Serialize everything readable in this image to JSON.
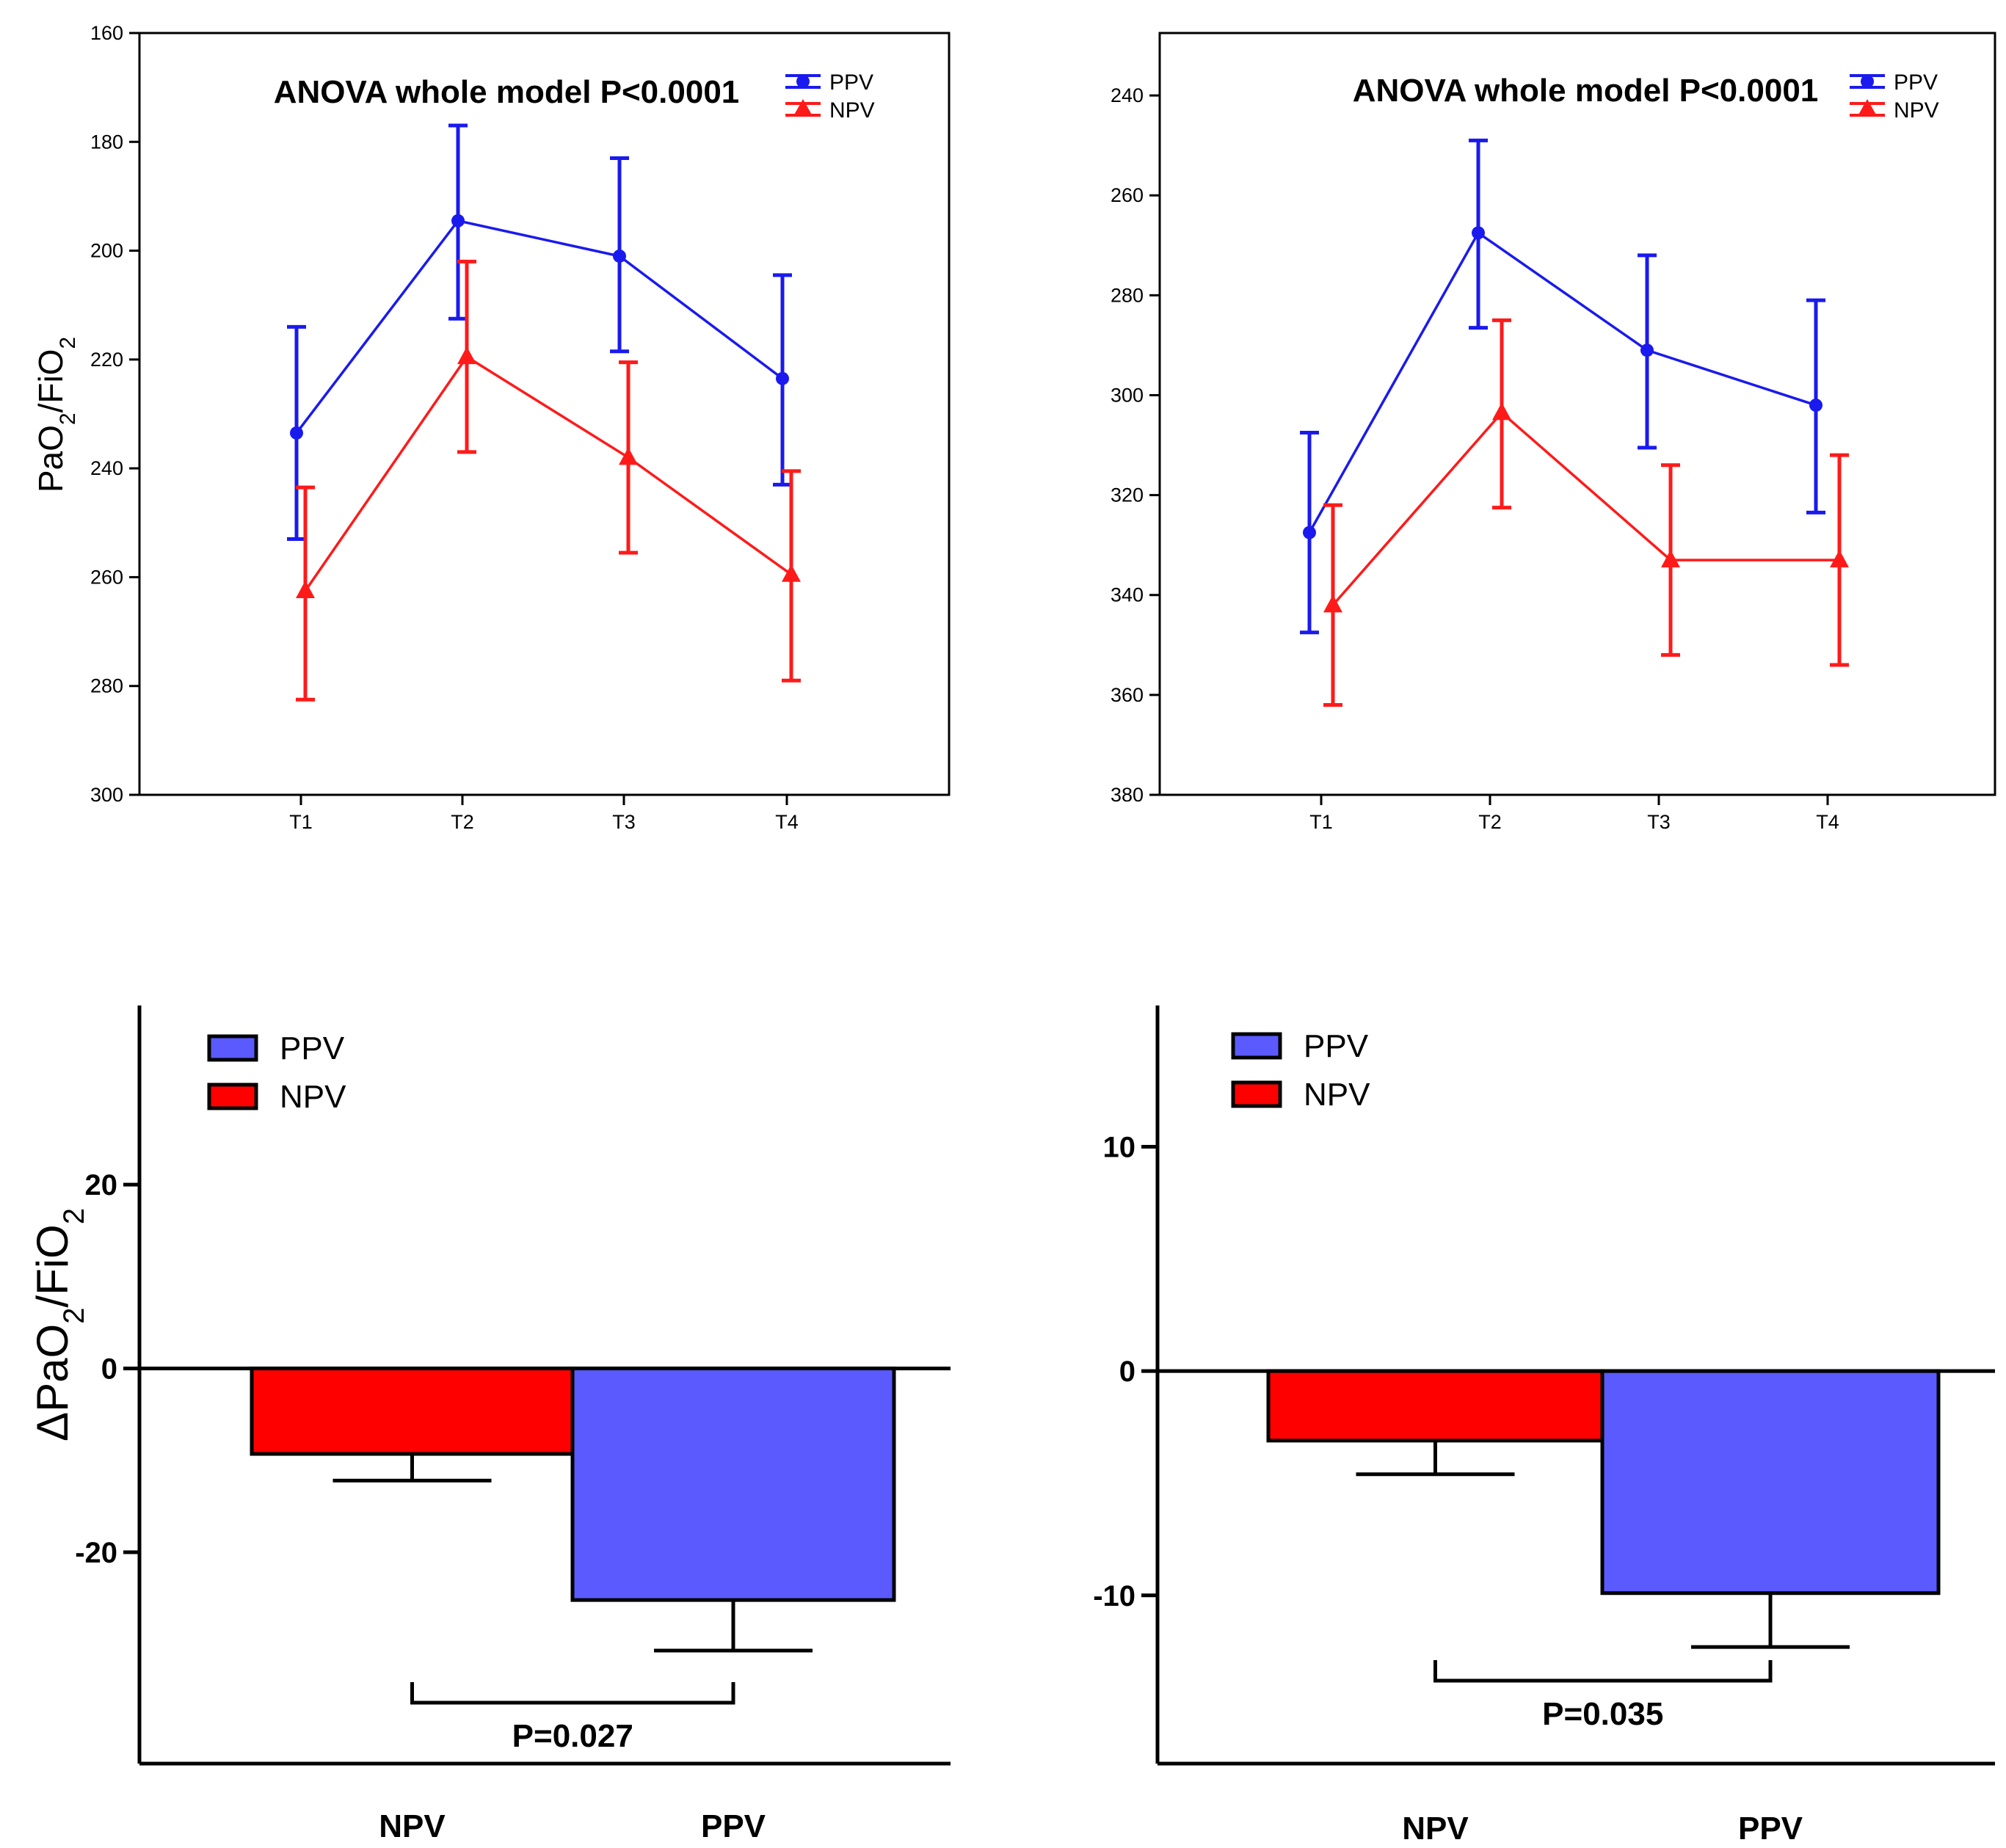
{
  "colors": {
    "ppv_line": "#1a1aee",
    "npv_line": "#ff1a1a",
    "ppv_bar": "#5a5aff",
    "npv_bar": "#ff0000",
    "axis": "#000000"
  },
  "shared_ylabel_top": {
    "base": "PaO",
    "sub1": "2",
    "mid": "/FiO",
    "sub2": "2"
  },
  "shared_ylabel_bottom": {
    "delta": "Δ",
    "base": "PaO",
    "sub1": "2",
    "mid": "/FiO",
    "sub2": "2"
  },
  "chart_data": [
    {
      "type": "line",
      "annotation": "ANOVA  whole  model  P<0.0001",
      "categories": [
        "T1",
        "T2",
        "T3",
        "T4"
      ],
      "ylim": [
        160,
        300
      ],
      "yticks": [
        160,
        180,
        200,
        220,
        240,
        260,
        280,
        300
      ],
      "legend": [
        "PPV",
        "NPV"
      ],
      "series": [
        {
          "name": "PPV",
          "values": [
            233.5,
            194.5,
            201,
            223.5
          ],
          "err_low": [
            214,
            177,
            183,
            204.5
          ],
          "err_high": [
            253,
            212.5,
            218.5,
            243
          ]
        },
        {
          "name": "NPV",
          "values": [
            262.5,
            219.5,
            238,
            259.5
          ],
          "err_low": [
            243.5,
            202,
            220.5,
            240.5
          ],
          "err_high": [
            282.5,
            237,
            255.5,
            279
          ]
        }
      ]
    },
    {
      "type": "line",
      "annotation": "ANOVA  whole  model  P<0.0001",
      "categories": [
        "T1",
        "T2",
        "T3",
        "T4"
      ],
      "ylim": [
        227.5,
        380
      ],
      "yticks": [
        240,
        260,
        280,
        300,
        320,
        340,
        360,
        380
      ],
      "legend": [
        "PPV",
        "NPV"
      ],
      "series": [
        {
          "name": "PPV",
          "values": [
            327.5,
            267.5,
            291,
            302
          ],
          "err_low": [
            307.5,
            249,
            272,
            281
          ],
          "err_high": [
            347.5,
            286.5,
            310.5,
            323.5
          ]
        },
        {
          "name": "NPV",
          "values": [
            342,
            303.5,
            333,
            333
          ],
          "err_low": [
            322,
            285,
            314,
            312
          ],
          "err_high": [
            362,
            322.5,
            352,
            354
          ]
        }
      ]
    },
    {
      "type": "bar",
      "categories": [
        "NPV",
        "PPV"
      ],
      "ylim": [
        -43,
        39.5
      ],
      "yticks": [
        -20,
        0,
        20
      ],
      "ytick_labels": [
        "-20",
        "0",
        "20"
      ],
      "legend": [
        "PPV",
        "NPV"
      ],
      "series": [
        {
          "values": [
            -9.3,
            -25.2
          ],
          "err": [
            2.9,
            5.5
          ]
        }
      ],
      "significance": "P=0.027"
    },
    {
      "type": "bar",
      "categories": [
        "NPV",
        "PPV"
      ],
      "ylim": [
        -17.5,
        16.3
      ],
      "yticks": [
        -10,
        0,
        10
      ],
      "ytick_labels": [
        "-10",
        "0",
        "10"
      ],
      "legend": [
        "PPV",
        "NPV"
      ],
      "series": [
        {
          "values": [
            -3.1,
            -9.9
          ],
          "err": [
            1.5,
            2.4
          ]
        }
      ],
      "significance": "P=0.035"
    }
  ]
}
